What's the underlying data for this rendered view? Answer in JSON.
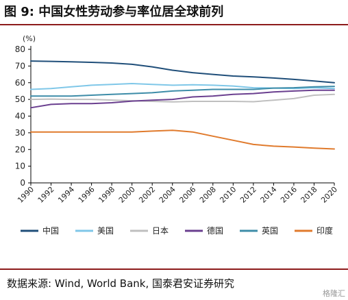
{
  "title": "图 9: 中国女性劳动参与率位居全球前列",
  "source": "数据来源: Wind, World Bank, 国泰君安证券研究",
  "watermark": "格隆汇",
  "chart_data": {
    "type": "line",
    "unit_label": "(%)",
    "ylim": [
      0,
      80
    ],
    "yticks": [
      0,
      10,
      20,
      30,
      40,
      50,
      60,
      70,
      80
    ],
    "xlim": [
      1990,
      2020
    ],
    "xticks": [
      1990,
      1992,
      1994,
      1996,
      1998,
      2000,
      2002,
      2004,
      2006,
      2008,
      2010,
      2012,
      2014,
      2016,
      2018,
      2020
    ],
    "grid": false,
    "legend_position": "bottom",
    "x": [
      1990,
      1992,
      1994,
      1996,
      1998,
      2000,
      2002,
      2004,
      2006,
      2008,
      2010,
      2012,
      2014,
      2016,
      2018,
      2020
    ],
    "series": [
      {
        "name": "中国",
        "color": "#1f4e79",
        "values": [
          73,
          72.8,
          72.5,
          72.2,
          71.8,
          71,
          69.5,
          67.5,
          66,
          65,
          64,
          63.5,
          62.8,
          62,
          61,
          60
        ]
      },
      {
        "name": "美国",
        "color": "#7fc7e8",
        "values": [
          56,
          56.5,
          57.5,
          58.5,
          59,
          59.5,
          59,
          58.5,
          58.8,
          58.5,
          58,
          57,
          56.8,
          56.5,
          57,
          56.5
        ]
      },
      {
        "name": "日本",
        "color": "#bfbfbf",
        "values": [
          50,
          50.2,
          50,
          50,
          49.6,
          49.2,
          48.8,
          48.5,
          48.8,
          48.8,
          48.8,
          48.6,
          49.5,
          50.5,
          52.5,
          53
        ]
      },
      {
        "name": "德国",
        "color": "#6a3f8f",
        "values": [
          45,
          47,
          47.5,
          47.5,
          48,
          49,
          49.5,
          50,
          51.5,
          52,
          53,
          53.5,
          54.5,
          55,
          55.5,
          55.5
        ]
      },
      {
        "name": "英国",
        "color": "#3d8ca8",
        "values": [
          52,
          52,
          52,
          52.5,
          53,
          53.5,
          54,
          55,
          55.5,
          56,
          56,
          56,
          56.8,
          57,
          57.5,
          57.8
        ]
      },
      {
        "name": "印度",
        "color": "#e07a2c",
        "values": [
          30.5,
          30.5,
          30.5,
          30.5,
          30.5,
          30.5,
          31,
          31.5,
          30.5,
          28,
          25.5,
          23,
          22,
          21.5,
          20.8,
          20.3
        ]
      }
    ]
  }
}
